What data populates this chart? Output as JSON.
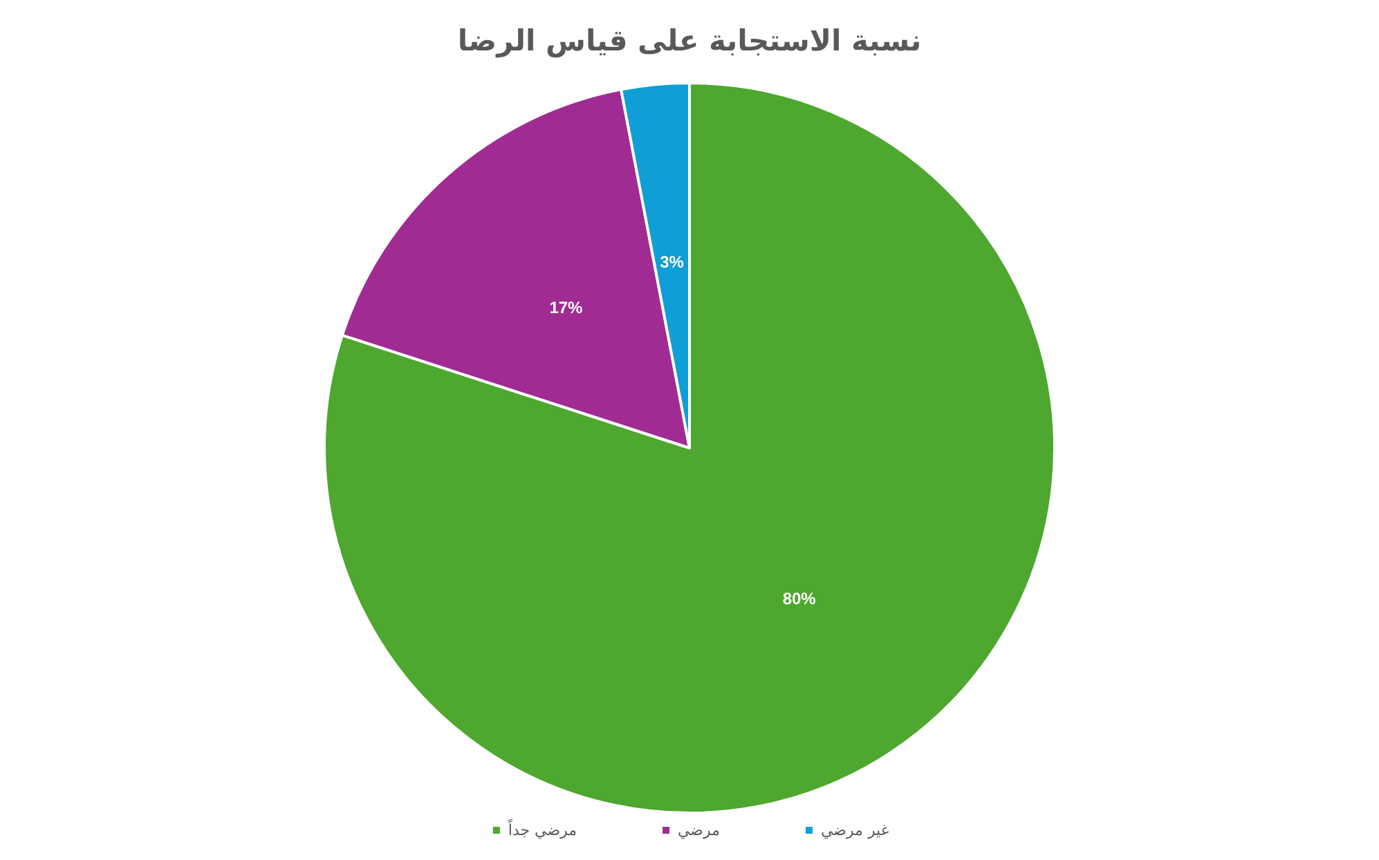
{
  "chart_data": {
    "type": "pie",
    "title": "نسبة الاستجابة على قياس الرضا",
    "categories": [
      "مرضي جداً",
      "مرضي",
      "غير مرضي"
    ],
    "values": [
      80,
      17,
      3
    ],
    "colors": [
      "#4ea72e",
      "#a02b93",
      "#0f9ed5"
    ],
    "value_labels": [
      "80%",
      "17%",
      "3%"
    ],
    "legend": "bottom"
  }
}
